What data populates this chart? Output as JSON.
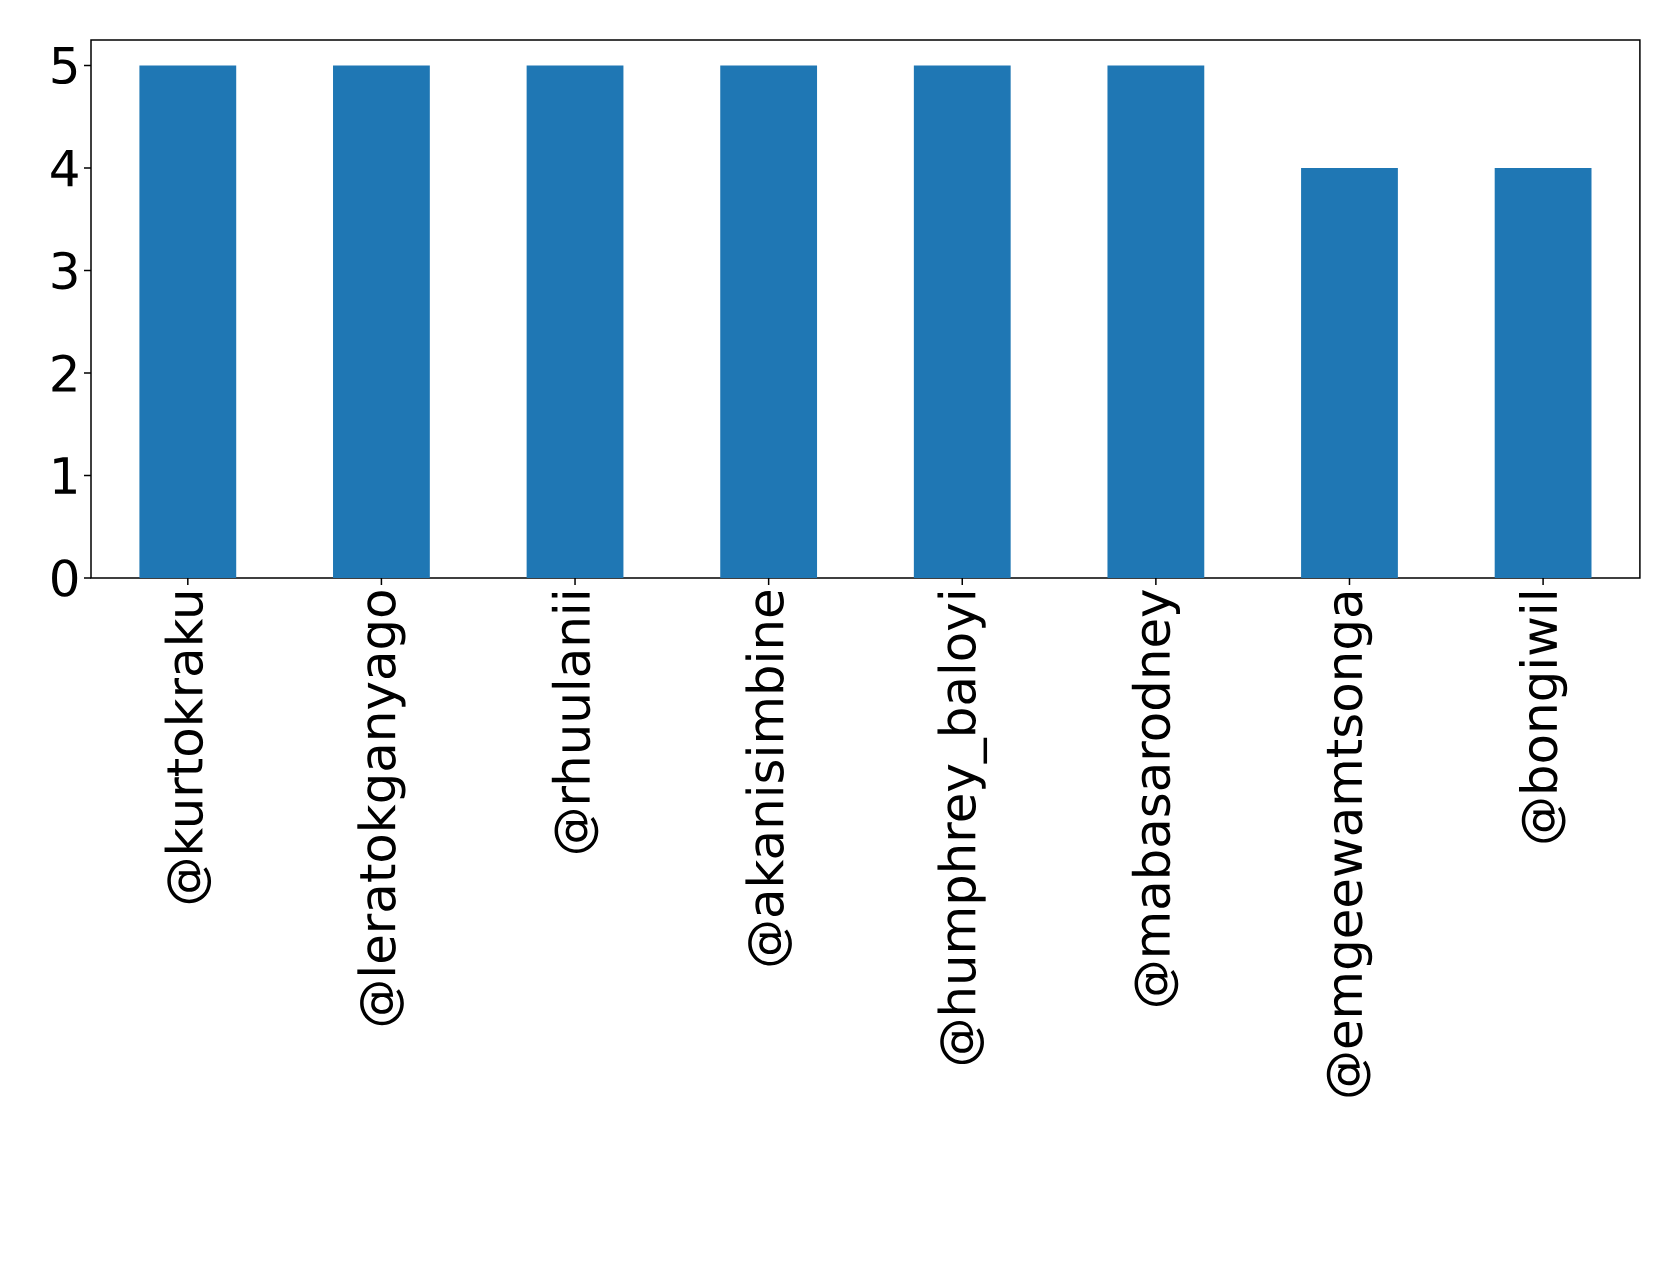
{
  "chart_data": {
    "type": "bar",
    "categories": [
      "@kurtokraku",
      "@leratokganyago",
      "@rhuulanii",
      "@akanisimbine",
      "@humphrey_baloyi",
      "@mabasarodney",
      "@emgeewamtsonga",
      "@bongiwil"
    ],
    "values": [
      5,
      5,
      5,
      5,
      5,
      5,
      4,
      4
    ],
    "color": "#1f77b4",
    "ylim": [
      0,
      5.25
    ],
    "yticks": [
      0,
      1,
      2,
      3,
      4,
      5
    ],
    "grid": false
  }
}
